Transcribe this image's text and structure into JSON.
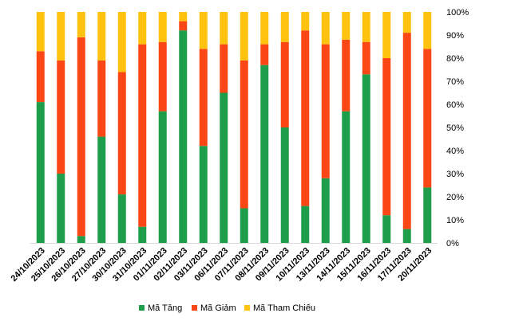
{
  "chart_data": {
    "type": "bar",
    "stacked": true,
    "percent": true,
    "categories": [
      "24/10/2023",
      "25/10/2023",
      "26/10/2023",
      "27/10/2023",
      "30/10/2023",
      "31/10/2023",
      "01/11/2023",
      "02/11/2023",
      "03/11/2023",
      "06/11/2023",
      "07/11/2023",
      "08/11/2023",
      "09/11/2023",
      "10/11/2023",
      "13/11/2023",
      "14/11/2023",
      "15/11/2023",
      "16/11/2023",
      "17/11/2023",
      "20/11/2023"
    ],
    "series": [
      {
        "name": "Mã Tăng",
        "color": "#1e9e4a",
        "values": [
          61,
          30,
          3,
          46,
          21,
          7,
          57,
          92,
          42,
          65,
          15,
          77,
          50,
          16,
          28,
          57,
          73,
          12,
          6,
          24
        ]
      },
      {
        "name": "Mã Giảm",
        "color": "#fb4616",
        "values": [
          22,
          49,
          86,
          33,
          53,
          79,
          30,
          4,
          42,
          21,
          64,
          9,
          37,
          76,
          58,
          31,
          14,
          68,
          85,
          60
        ]
      },
      {
        "name": "Mã Tham Chiếu",
        "color": "#ffc20e",
        "values": [
          17,
          21,
          11,
          21,
          26,
          14,
          13,
          4,
          16,
          14,
          21,
          14,
          13,
          8,
          14,
          12,
          13,
          20,
          9,
          16
        ]
      }
    ],
    "yticks": [
      "0%",
      "10%",
      "20%",
      "30%",
      "40%",
      "50%",
      "60%",
      "70%",
      "80%",
      "90%",
      "100%"
    ],
    "ylim": [
      0,
      100
    ],
    "grid": false,
    "legend_position": "bottom"
  }
}
